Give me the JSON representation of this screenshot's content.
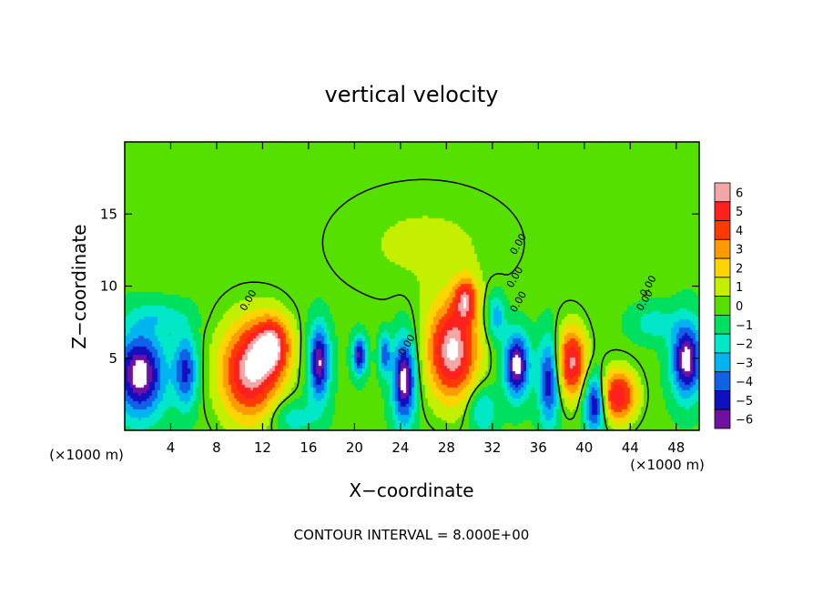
{
  "chart_data": {
    "type": "heatmap",
    "title": "vertical velocity",
    "xlabel": "X−coordinate",
    "ylabel": "Z−coordinate",
    "x_unit_left": "(×1000 m)",
    "x_unit_right": "(×1000 m)",
    "footer": "CONTOUR INTERVAL = 8.000E+00",
    "xlim": [
      0,
      50
    ],
    "ylim": [
      0,
      20
    ],
    "x_ticks": [
      4,
      8,
      12,
      16,
      20,
      24,
      28,
      32,
      36,
      40,
      44,
      48
    ],
    "y_ticks": [
      5,
      10,
      15
    ],
    "contour_label": "0.00",
    "colorbar": {
      "levels": [
        6,
        5,
        4,
        3,
        2,
        1,
        0,
        -1,
        -2,
        -3,
        -4,
        -5,
        -6
      ],
      "colors": [
        "#f4a6a6",
        "#ff2020",
        "#ff3a00",
        "#ff9a00",
        "#ffd400",
        "#c4f000",
        "#55e000",
        "#00e060",
        "#00e8c8",
        "#00b4f0",
        "#1060e8",
        "#1010c0",
        "#7010a0"
      ]
    },
    "background_value": -0.3,
    "cells": [
      {
        "x": 1.2,
        "z": 4.0,
        "value": -6.5,
        "sx": 2.2,
        "sz": 3.0
      },
      {
        "x": 5.2,
        "z": 4.2,
        "value": -4.5,
        "sx": 1.0,
        "sz": 2.5
      },
      {
        "x": 10.8,
        "z": 4.2,
        "value": 6.5,
        "sx": 2.6,
        "sz": 3.4
      },
      {
        "x": 12.8,
        "z": 6.0,
        "value": 5.0,
        "sx": 1.6,
        "sz": 2.0
      },
      {
        "x": 16.8,
        "z": 4.8,
        "value": -6.0,
        "sx": 0.9,
        "sz": 2.6
      },
      {
        "x": 20.3,
        "z": 5.3,
        "value": -5.5,
        "sx": 0.6,
        "sz": 1.3
      },
      {
        "x": 22.5,
        "z": 5.4,
        "value": -4.0,
        "sx": 0.5,
        "sz": 1.4
      },
      {
        "x": 24.2,
        "z": 3.6,
        "value": -6.5,
        "sx": 1.0,
        "sz": 3.0
      },
      {
        "x": 28.4,
        "z": 5.6,
        "value": 6.8,
        "sx": 2.2,
        "sz": 3.4
      },
      {
        "x": 29.6,
        "z": 9.2,
        "value": 4.5,
        "sx": 1.0,
        "sz": 1.5
      },
      {
        "x": 34.0,
        "z": 4.6,
        "value": -6.5,
        "sx": 1.1,
        "sz": 2.2
      },
      {
        "x": 32.2,
        "z": 8.0,
        "value": -3.0,
        "sx": 0.8,
        "sz": 1.6
      },
      {
        "x": 36.8,
        "z": 3.5,
        "value": -5.0,
        "sx": 0.9,
        "sz": 3.0
      },
      {
        "x": 38.8,
        "z": 4.8,
        "value": 6.0,
        "sx": 1.3,
        "sz": 2.4
      },
      {
        "x": 40.8,
        "z": 2.0,
        "value": -6.0,
        "sx": 0.9,
        "sz": 2.0
      },
      {
        "x": 42.8,
        "z": 2.5,
        "value": 5.8,
        "sx": 1.6,
        "sz": 1.8
      },
      {
        "x": 48.8,
        "z": 5.0,
        "value": -6.5,
        "sx": 1.3,
        "sz": 2.6
      },
      {
        "x": 14.5,
        "z": 1.0,
        "value": -2.0,
        "sx": 2.0,
        "sz": 1.2
      },
      {
        "x": 31.0,
        "z": 1.5,
        "value": -2.5,
        "sx": 1.2,
        "sz": 1.6
      },
      {
        "x": 26.0,
        "z": 13.0,
        "value": 1.0,
        "sx": 8.0,
        "sz": 4.0
      },
      {
        "x": 3.0,
        "z": 8.0,
        "value": -1.5,
        "sx": 2.5,
        "sz": 1.0
      },
      {
        "x": 46.0,
        "z": 7.5,
        "value": -1.8,
        "sx": 2.0,
        "sz": 1.2
      }
    ]
  }
}
